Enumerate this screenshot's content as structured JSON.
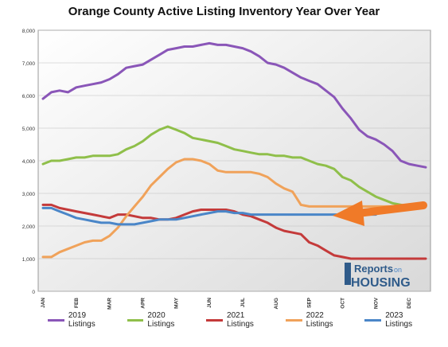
{
  "chart_data": {
    "type": "line",
    "title": "Orange County Active Listing Inventory Year Over Year",
    "xlabel": "",
    "ylabel": "",
    "categories": [
      "JAN",
      "FEB",
      "MAR",
      "APR",
      "MAY",
      "JUN",
      "JUL",
      "AUG",
      "SEP",
      "OCT",
      "NOV",
      "DEC"
    ],
    "ylim": [
      0,
      8000
    ],
    "yticks": [
      0,
      1000,
      2000,
      3000,
      4000,
      5000,
      6000,
      7000,
      8000
    ],
    "ytick_labels": [
      "0",
      "1,000",
      "2,000",
      "3,000",
      "4,000",
      "5,000",
      "6,000",
      "7,000",
      "8,000"
    ],
    "grid": true,
    "legend_position": "bottom",
    "series": [
      {
        "name": "2019 Listings",
        "color": "#8a56b8",
        "x": [
          0,
          0.25,
          0.5,
          0.75,
          1,
          1.25,
          1.5,
          1.75,
          2,
          2.25,
          2.5,
          2.75,
          3,
          3.25,
          3.5,
          3.75,
          4,
          4.25,
          4.5,
          4.75,
          5,
          5.25,
          5.5,
          5.75,
          6,
          6.25,
          6.5,
          6.75,
          7,
          7.25,
          7.5,
          7.75,
          8,
          8.25,
          8.5,
          8.75,
          9,
          9.25,
          9.5,
          9.75,
          10,
          10.25,
          10.5,
          10.75,
          11,
          11.25,
          11.5
        ],
        "y": [
          5900,
          6100,
          6150,
          6100,
          6250,
          6300,
          6350,
          6400,
          6500,
          6650,
          6850,
          6900,
          6950,
          7100,
          7250,
          7400,
          7450,
          7500,
          7500,
          7550,
          7600,
          7550,
          7550,
          7500,
          7450,
          7350,
          7200,
          7000,
          6950,
          6850,
          6700,
          6550,
          6450,
          6350,
          6150,
          5950,
          5600,
          5300,
          4950,
          4750,
          4650,
          4500,
          4300,
          4000,
          3900,
          3850,
          3800
        ]
      },
      {
        "name": "2020 Listings",
        "color": "#8fbf4a",
        "x": [
          0,
          0.25,
          0.5,
          0.75,
          1,
          1.25,
          1.5,
          1.75,
          2,
          2.25,
          2.5,
          2.75,
          3,
          3.25,
          3.5,
          3.75,
          4,
          4.25,
          4.5,
          4.75,
          5,
          5.25,
          5.5,
          5.75,
          6,
          6.25,
          6.5,
          6.75,
          7,
          7.25,
          7.5,
          7.75,
          8,
          8.25,
          8.5,
          8.75,
          9,
          9.25,
          9.5,
          9.75,
          10,
          10.25,
          10.5,
          10.75,
          11,
          11.25,
          11.5
        ],
        "y": [
          3900,
          4000,
          4000,
          4050,
          4100,
          4100,
          4150,
          4150,
          4150,
          4200,
          4350,
          4450,
          4600,
          4800,
          4950,
          5050,
          4950,
          4850,
          4700,
          4650,
          4600,
          4550,
          4450,
          4350,
          4300,
          4250,
          4200,
          4200,
          4150,
          4150,
          4100,
          4100,
          4000,
          3900,
          3850,
          3750,
          3500,
          3400,
          3200,
          3050,
          2900,
          2800,
          2700,
          2650,
          2600,
          2600,
          2600
        ]
      },
      {
        "name": "2021 Listings",
        "color": "#c43a3a",
        "x": [
          0,
          0.25,
          0.5,
          0.75,
          1,
          1.25,
          1.5,
          1.75,
          2,
          2.25,
          2.5,
          2.75,
          3,
          3.25,
          3.5,
          3.75,
          4,
          4.25,
          4.5,
          4.75,
          5,
          5.25,
          5.5,
          5.75,
          6,
          6.25,
          6.5,
          6.75,
          7,
          7.25,
          7.5,
          7.75,
          8,
          8.25,
          8.5,
          8.75,
          9,
          9.25,
          9.5,
          9.75,
          10,
          10.25,
          10.5,
          10.75,
          11,
          11.25,
          11.5
        ],
        "y": [
          2650,
          2650,
          2550,
          2500,
          2450,
          2400,
          2350,
          2300,
          2250,
          2350,
          2350,
          2300,
          2250,
          2250,
          2200,
          2200,
          2250,
          2350,
          2450,
          2500,
          2500,
          2500,
          2500,
          2450,
          2350,
          2300,
          2200,
          2100,
          1950,
          1850,
          1800,
          1750,
          1500,
          1400,
          1250,
          1100,
          1050,
          1000,
          1000,
          1000,
          1000,
          1000,
          1000,
          1000,
          1000,
          1000,
          1000
        ]
      },
      {
        "name": "2022 Listings",
        "color": "#f0a25a",
        "x": [
          0,
          0.25,
          0.5,
          0.75,
          1,
          1.25,
          1.5,
          1.75,
          2,
          2.25,
          2.5,
          2.75,
          3,
          3.25,
          3.5,
          3.75,
          4,
          4.25,
          4.5,
          4.75,
          5,
          5.25,
          5.5,
          5.75,
          6,
          6.25,
          6.5,
          6.75,
          7,
          7.25,
          7.5,
          7.75,
          8,
          8.25,
          8.5,
          8.75,
          9,
          9.25,
          9.5,
          9.75,
          10,
          10.25,
          10.5,
          10.75,
          11,
          11.25,
          11.5
        ],
        "y": [
          1050,
          1050,
          1200,
          1300,
          1400,
          1500,
          1550,
          1550,
          1700,
          1950,
          2300,
          2600,
          2900,
          3250,
          3500,
          3750,
          3950,
          4050,
          4050,
          4000,
          3900,
          3700,
          3650,
          3650,
          3650,
          3650,
          3600,
          3500,
          3300,
          3150,
          3050,
          2650,
          2600,
          2600,
          2600,
          2600,
          2600,
          2600,
          2600,
          2600,
          2600,
          2600,
          2600,
          2600,
          2600,
          2600,
          2600
        ]
      },
      {
        "name": "2023 Listings",
        "color": "#4a86c8",
        "x": [
          0,
          0.25,
          0.5,
          0.75,
          1,
          1.25,
          1.5,
          1.75,
          2,
          2.25,
          2.5,
          2.75,
          3,
          3.25,
          3.5,
          3.75,
          4,
          4.25,
          4.5,
          4.75,
          5,
          5.25,
          5.5,
          5.75,
          6,
          6.25,
          6.5,
          6.75,
          7,
          7.25,
          7.5,
          7.75,
          8,
          8.25,
          8.5,
          8.75,
          9,
          9.25,
          9.5,
          9.75,
          10
        ],
        "y": [
          2550,
          2550,
          2450,
          2350,
          2250,
          2200,
          2150,
          2100,
          2100,
          2050,
          2050,
          2050,
          2100,
          2150,
          2200,
          2200,
          2200,
          2250,
          2300,
          2350,
          2400,
          2450,
          2450,
          2400,
          2400,
          2350,
          2350,
          2350,
          2350,
          2350,
          2350,
          2350,
          2350,
          2350,
          2350,
          2350,
          2350,
          2350,
          2350,
          2350,
          2350
        ]
      }
    ],
    "annotation": {
      "type": "arrow",
      "color": "#f07a28"
    }
  },
  "logo": {
    "text_top": "Reports",
    "text_on": "on",
    "text_bottom": "HOUSING"
  }
}
